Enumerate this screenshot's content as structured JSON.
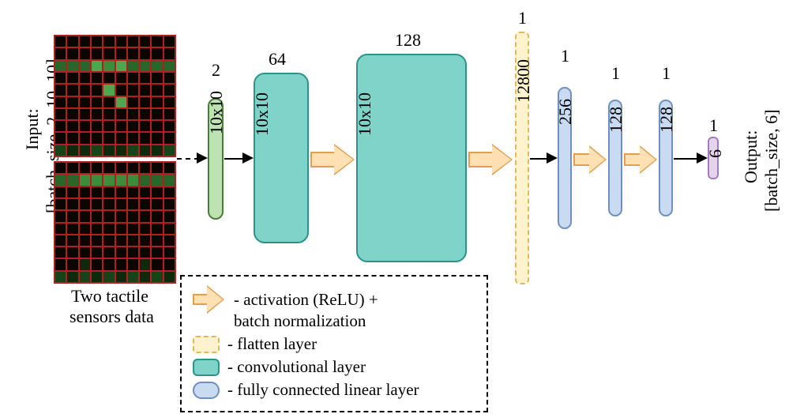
{
  "input": {
    "label_line1": "Input:",
    "label_line2": "[batch_size, 2, 10, 10]",
    "caption_line1": "Two tactile",
    "caption_line2": "sensors data",
    "grid": {
      "rows": 10,
      "cols": 10
    },
    "grid_colors": {
      "background": "#0c0600",
      "gridline": "#b02020",
      "green_levels": [
        "#0d2a0d",
        "#184218",
        "#2a652a",
        "#3c8c3c",
        "#4ea64e"
      ]
    }
  },
  "layers": {
    "input_block": {
      "dims": "10x10",
      "channels": "2",
      "color": "#bde3b3",
      "border": "#4a7d3a",
      "type": "input"
    },
    "conv1": {
      "dims": "10x10",
      "channels": "64",
      "color": "#7fd3c9",
      "border": "#2a9488",
      "type": "convolutional"
    },
    "conv2": {
      "dims": "10x10",
      "channels": "128",
      "color": "#7fd3c9",
      "border": "#2a9488",
      "type": "convolutional"
    },
    "flatten": {
      "dims": "1",
      "channels": "12800",
      "color": "#fff2cf",
      "border": "#e0b958",
      "type": "flatten"
    },
    "fc1": {
      "dims": "1",
      "channels": "256",
      "color": "#c9dbf1",
      "border": "#6f8fbf",
      "type": "fully-connected"
    },
    "fc2": {
      "dims": "1",
      "channels": "128",
      "color": "#c9dbf1",
      "border": "#6f8fbf",
      "type": "fully-connected"
    },
    "fc3": {
      "dims": "1",
      "channels": "128",
      "color": "#c9dbf1",
      "border": "#6f8fbf",
      "type": "fully-connected"
    },
    "out": {
      "dims": "1",
      "channels": "6",
      "color": "#e5d4ec",
      "border": "#a17dbb",
      "type": "output"
    }
  },
  "output": {
    "label_line1": "Output:",
    "label_line2": "[batch_size, 6]"
  },
  "legend": {
    "relu_line1": "- activation (ReLU) +",
    "relu_line2": "batch normalization",
    "flatten": "- flatten layer",
    "conv": "- convolutional layer",
    "fc": "- fully connected linear layer",
    "colors": {
      "arrow_fill": "#ffe0b2",
      "arrow_border": "#e0a050",
      "flatten_fill": "#fff2cf",
      "flatten_border": "#e0b958",
      "conv_fill": "#7fd3c9",
      "conv_border": "#2a9488",
      "fc_fill": "#c9dbf1",
      "fc_border": "#6f8fbf"
    }
  },
  "style": {
    "background": "#ffffff",
    "font_family": "Times New Roman",
    "font_size_labels": 22,
    "arrow_line_color": "#000000"
  }
}
